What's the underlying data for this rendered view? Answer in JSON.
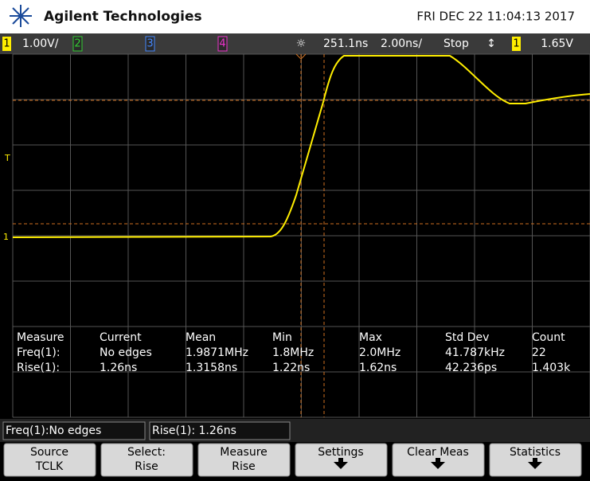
{
  "header": {
    "brand": "Agilent Technologies",
    "datetime": "FRI DEC 22 11:04:13 2017"
  },
  "status_bar": {
    "ch1": "1",
    "ch1_scale": "1.00V/",
    "ch2": "2",
    "ch3": "3",
    "ch4": "4",
    "time_delay": "251.1ns",
    "time_scale": "2.00ns/",
    "run_state": "Stop",
    "trigger_source": "1",
    "trigger_level": "1.65V"
  },
  "markers": {
    "trigger": "T",
    "ch1": "1"
  },
  "measurements": {
    "header": [
      "Measure",
      "Current",
      "Mean",
      "Min",
      "Max",
      "Std Dev",
      "Count"
    ],
    "rows": [
      [
        "Freq(1):",
        "No edges",
        "1.9871MHz",
        "1.8MHz",
        "2.0MHz",
        "41.787kHz",
        "22"
      ],
      [
        "Rise(1):",
        "1.26ns",
        "1.3158ns",
        "1.22ns",
        "1.62ns",
        "42.236ps",
        "1.403k"
      ]
    ]
  },
  "summary": [
    "Freq(1):No edges",
    "Rise(1): 1.26ns"
  ],
  "softkeys": [
    {
      "title": "Source",
      "value": "TCLK"
    },
    {
      "title": "Select:",
      "value": "Rise"
    },
    {
      "title": "Measure",
      "value": "Rise"
    },
    {
      "title": "Settings"
    },
    {
      "title": "Clear Meas"
    },
    {
      "title": "Statistics"
    }
  ]
}
